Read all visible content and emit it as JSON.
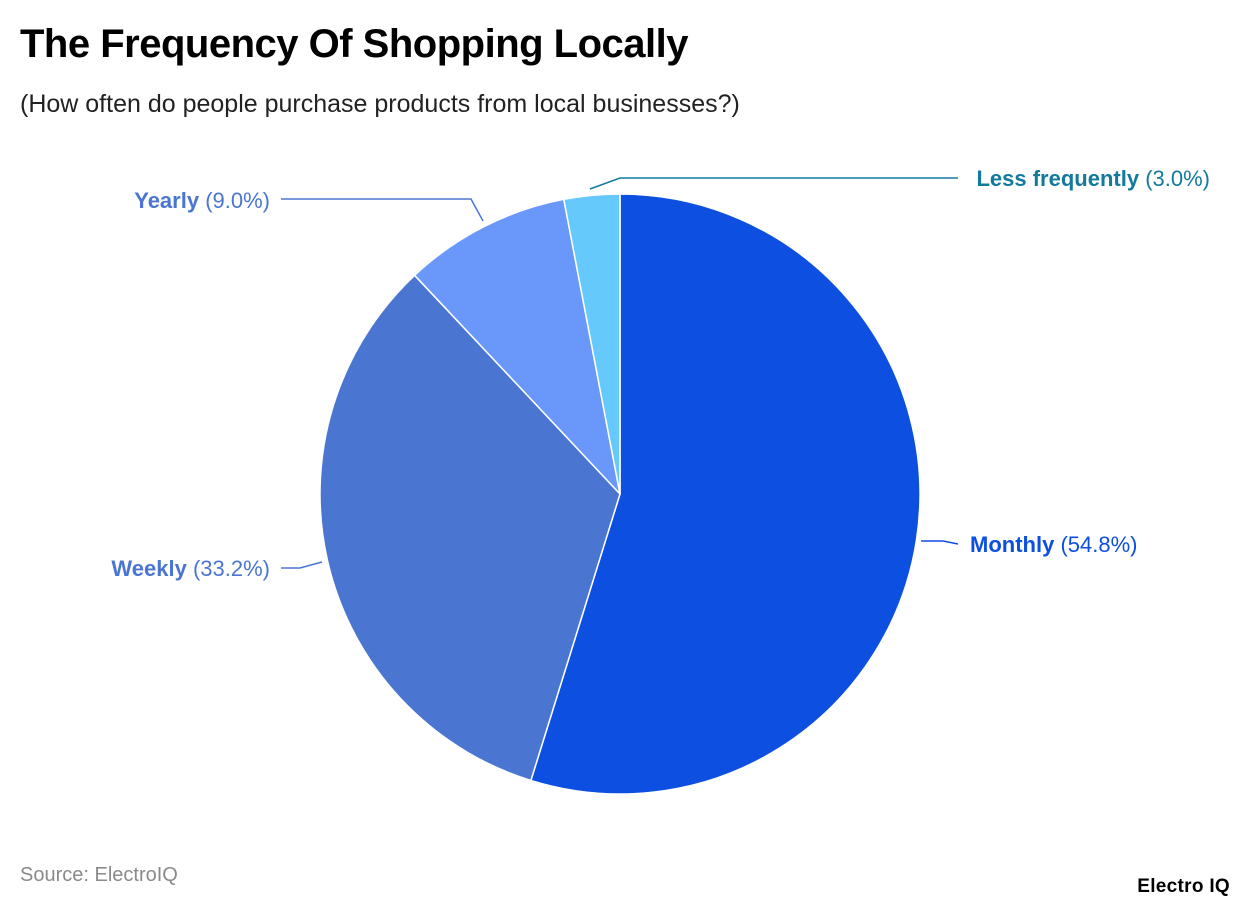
{
  "header": {
    "title": "The Frequency Of Shopping Locally",
    "subtitle": "(How often do people purchase products from local businesses?)"
  },
  "footer": {
    "source": "Source: ElectroIQ",
    "brand": "Electro IQ"
  },
  "chart_data": {
    "type": "pie",
    "title": "The Frequency Of Shopping Locally",
    "subtitle": "(How often do people purchase products from local businesses?)",
    "slices": [
      {
        "label": "Monthly",
        "value": 54.8,
        "value_label": "(54.8%)",
        "color": "#0d4fe0",
        "label_color": "#0d4fe0"
      },
      {
        "label": "Weekly",
        "value": 33.2,
        "value_label": "(33.2%)",
        "color": "#4a76d2",
        "label_color": "#4a76d2"
      },
      {
        "label": "Yearly",
        "value": 9.0,
        "value_label": "(9.0%)",
        "color": "#6a98fa",
        "label_color": "#4a76d2"
      },
      {
        "label": "Less frequently",
        "value": 3.0,
        "value_label": "(3.0%)",
        "color": "#66c9fb",
        "label_color": "#137a9e"
      }
    ],
    "start_angle": "12 o'clock",
    "direction": "clockwise",
    "legend": "none"
  }
}
